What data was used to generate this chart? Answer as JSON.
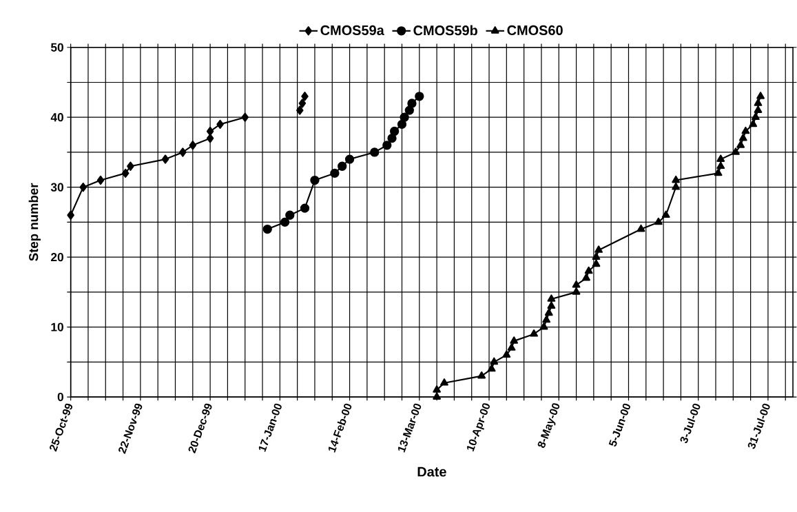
{
  "chart_data": {
    "type": "line",
    "xlabel": "Date",
    "ylabel": "Step number",
    "xlim": [
      "1999-10-25",
      "2000-08-10"
    ],
    "ylim": [
      0,
      50
    ],
    "xticks": [
      {
        "value": "1999-10-25",
        "label": "25-Oct-99"
      },
      {
        "value": "1999-11-01",
        "label": null
      },
      {
        "value": "1999-11-08",
        "label": null
      },
      {
        "value": "1999-11-15",
        "label": null
      },
      {
        "value": "1999-11-22",
        "label": "22-Nov-99"
      },
      {
        "value": "1999-11-29",
        "label": null
      },
      {
        "value": "1999-12-06",
        "label": null
      },
      {
        "value": "1999-12-13",
        "label": null
      },
      {
        "value": "1999-12-20",
        "label": "20-Dec-99"
      },
      {
        "value": "1999-12-27",
        "label": null
      },
      {
        "value": "2000-01-03",
        "label": null
      },
      {
        "value": "2000-01-10",
        "label": null
      },
      {
        "value": "2000-01-17",
        "label": "17-Jan-00"
      },
      {
        "value": "2000-01-24",
        "label": null
      },
      {
        "value": "2000-01-31",
        "label": null
      },
      {
        "value": "2000-02-07",
        "label": null
      },
      {
        "value": "2000-02-14",
        "label": "14-Feb-00"
      },
      {
        "value": "2000-02-21",
        "label": null
      },
      {
        "value": "2000-02-28",
        "label": null
      },
      {
        "value": "2000-03-06",
        "label": null
      },
      {
        "value": "2000-03-13",
        "label": "13-Mar-00"
      },
      {
        "value": "2000-03-20",
        "label": null
      },
      {
        "value": "2000-03-27",
        "label": null
      },
      {
        "value": "2000-04-03",
        "label": null
      },
      {
        "value": "2000-04-10",
        "label": "10-Apr-00"
      },
      {
        "value": "2000-04-17",
        "label": null
      },
      {
        "value": "2000-04-24",
        "label": null
      },
      {
        "value": "2000-05-01",
        "label": null
      },
      {
        "value": "2000-05-08",
        "label": "8-May-00"
      },
      {
        "value": "2000-05-15",
        "label": null
      },
      {
        "value": "2000-05-22",
        "label": null
      },
      {
        "value": "2000-05-29",
        "label": null
      },
      {
        "value": "2000-06-05",
        "label": "5-Jun-00"
      },
      {
        "value": "2000-06-12",
        "label": null
      },
      {
        "value": "2000-06-19",
        "label": null
      },
      {
        "value": "2000-06-26",
        "label": null
      },
      {
        "value": "2000-07-03",
        "label": "3-Jul-00"
      },
      {
        "value": "2000-07-10",
        "label": null
      },
      {
        "value": "2000-07-17",
        "label": null
      },
      {
        "value": "2000-07-24",
        "label": null
      },
      {
        "value": "2000-07-31",
        "label": "31-Jul-00"
      },
      {
        "value": "2000-08-07",
        "label": null
      }
    ],
    "yticks": [
      0,
      {
        "value": 5,
        "label": null
      },
      10,
      {
        "value": 15,
        "label": null
      },
      20,
      {
        "value": 25,
        "label": null
      },
      30,
      {
        "value": 35,
        "label": null
      },
      40,
      {
        "value": 45,
        "label": null
      },
      50
    ],
    "grid": true,
    "legend": "top",
    "series": [
      {
        "name": "CMOS59a",
        "color": "#000000",
        "marker": "diamond",
        "x": [
          "1999-10-25",
          "1999-10-30",
          "1999-11-06",
          "1999-11-16",
          "1999-11-18",
          "1999-12-02",
          "1999-12-09",
          "1999-12-13",
          "1999-12-20",
          "1999-12-20",
          "1999-12-24",
          "2000-01-03",
          "2000-01-14",
          "2000-01-25",
          "2000-01-26",
          "2000-01-27"
        ],
        "values": [
          26,
          30,
          31,
          32,
          33,
          34,
          35,
          36,
          37,
          38,
          39,
          40,
          null,
          41,
          42,
          43
        ]
      },
      {
        "name": "CMOS59b",
        "color": "#000000",
        "marker": "circle",
        "x": [
          "2000-01-12",
          "2000-01-19",
          "2000-01-21",
          "2000-01-27",
          "2000-01-31",
          "2000-02-08",
          "2000-02-11",
          "2000-02-14",
          "2000-02-24",
          "2000-02-29",
          "2000-03-02",
          "2000-03-03",
          "2000-03-06",
          "2000-03-07",
          "2000-03-09",
          "2000-03-10",
          "2000-03-13"
        ],
        "values": [
          24,
          25,
          26,
          27,
          31,
          32,
          33,
          34,
          35,
          36,
          37,
          38,
          39,
          40,
          41,
          42,
          43
        ]
      },
      {
        "name": "CMOS60",
        "color": "#000000",
        "marker": "triangle",
        "x": [
          "2000-03-20",
          "2000-03-20",
          "2000-03-23",
          "2000-04-07",
          "2000-04-11",
          "2000-04-12",
          "2000-04-17",
          "2000-04-19",
          "2000-04-20",
          "2000-04-28",
          "2000-05-02",
          "2000-05-03",
          "2000-05-04",
          "2000-05-05",
          "2000-05-05",
          "2000-05-15",
          "2000-05-15",
          "2000-05-19",
          "2000-05-20",
          "2000-05-23",
          "2000-05-23",
          "2000-05-24",
          "2000-06-10",
          "2000-06-17",
          "2000-06-20",
          "2000-06-24",
          "2000-06-24",
          "2000-07-11",
          "2000-07-12",
          "2000-07-12",
          "2000-07-18",
          "2000-07-20",
          "2000-07-21",
          "2000-07-22",
          "2000-07-25",
          "2000-07-26",
          "2000-07-27",
          "2000-07-27",
          "2000-07-28"
        ],
        "values": [
          0,
          1,
          2,
          3,
          4,
          5,
          6,
          7,
          8,
          9,
          10,
          11,
          12,
          13,
          14,
          15,
          16,
          17,
          18,
          19,
          20,
          21,
          24,
          25,
          26,
          30,
          31,
          32,
          33,
          34,
          35,
          36,
          37,
          38,
          39,
          40,
          41,
          42,
          43
        ]
      }
    ]
  }
}
